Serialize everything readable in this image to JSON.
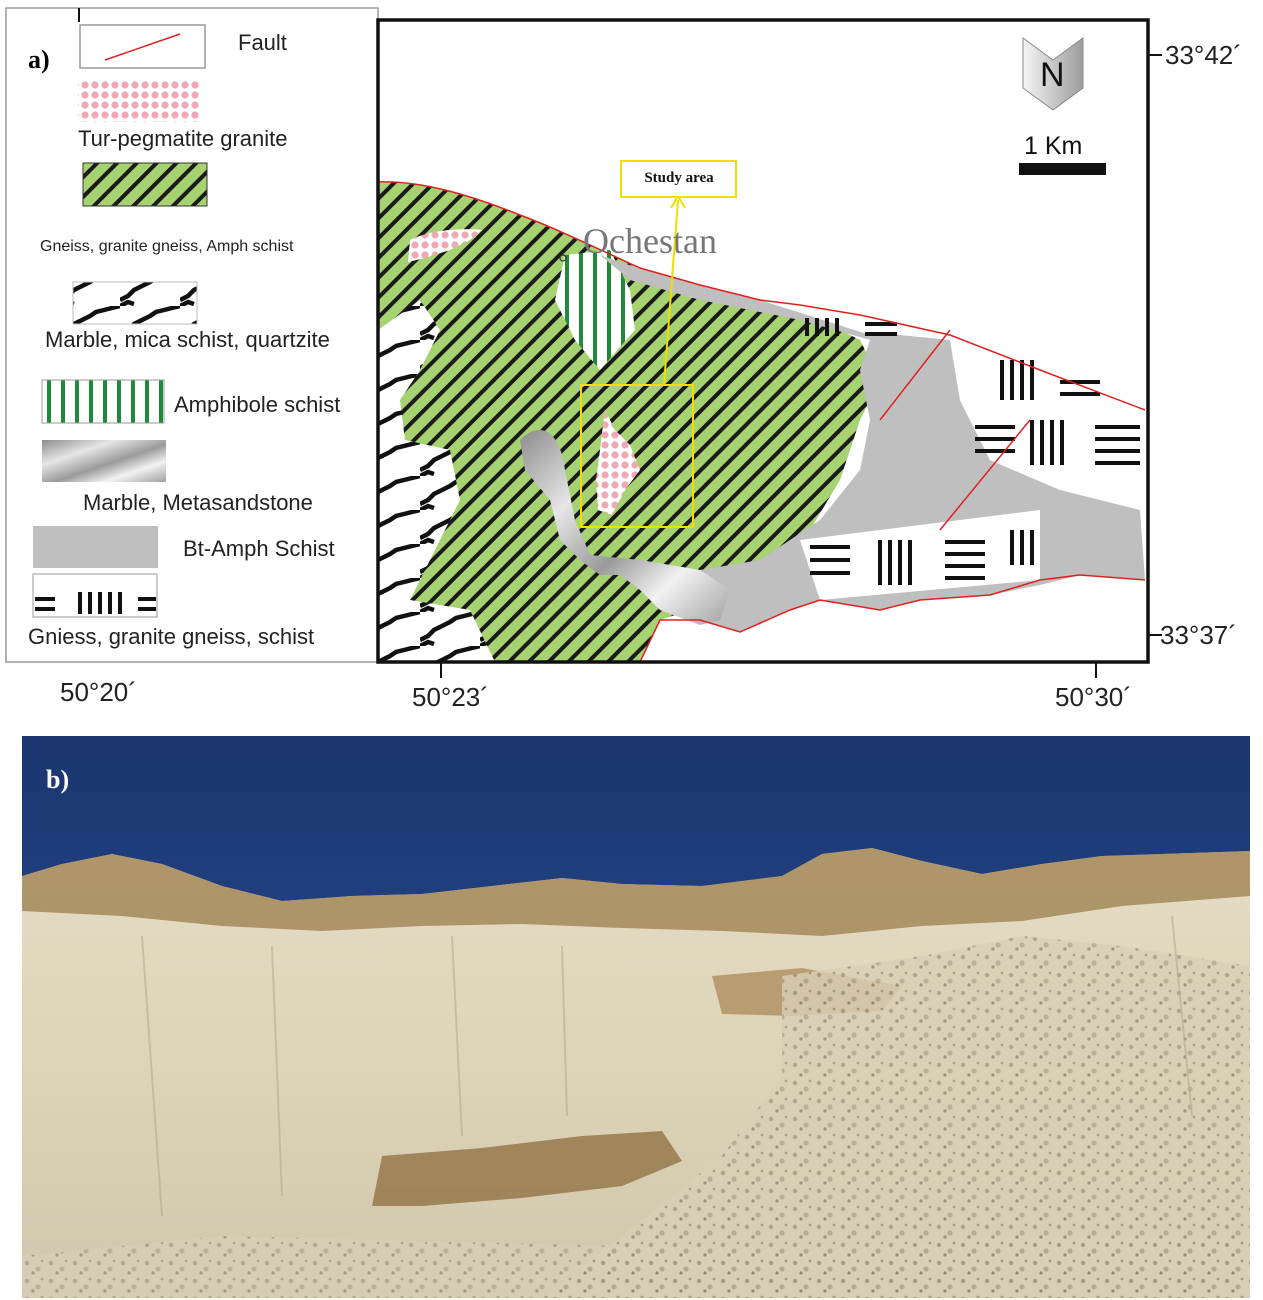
{
  "panel_a": {
    "label": "a)",
    "legend": {
      "fault": "Fault",
      "tur_pegmatite": "Tur-pegmatite granite",
      "gneiss_amph": "Gneiss, granite gneiss, Amph schist",
      "marble_mica": "Marble, mica schist, quartzite",
      "amphibole": "Amphibole schist",
      "marble_meta": "Marble, Metasandstone",
      "bt_amph": "Bt-Amph Schist",
      "gneiss_schist": "Gniess, granite gneiss, schist"
    },
    "map": {
      "north": "N",
      "scale": "1 Km",
      "study_area": "Study area",
      "place": "Ochestan"
    },
    "coords": {
      "lat_top": "33°42´",
      "lat_bottom": "33°37´",
      "lon_left": "50°20´",
      "lon_mid": "50°23´",
      "lon_right": "50°30´"
    },
    "colors": {
      "green": "#a6d272",
      "gray": "#bfbfbf",
      "pink": "#f4aab8",
      "fault": "#e02020",
      "study_box": "#f0e000"
    }
  },
  "panel_b": {
    "label": "b)",
    "colors": {
      "sky": "#1f3d7a",
      "rock": "#ddd3b8"
    }
  }
}
